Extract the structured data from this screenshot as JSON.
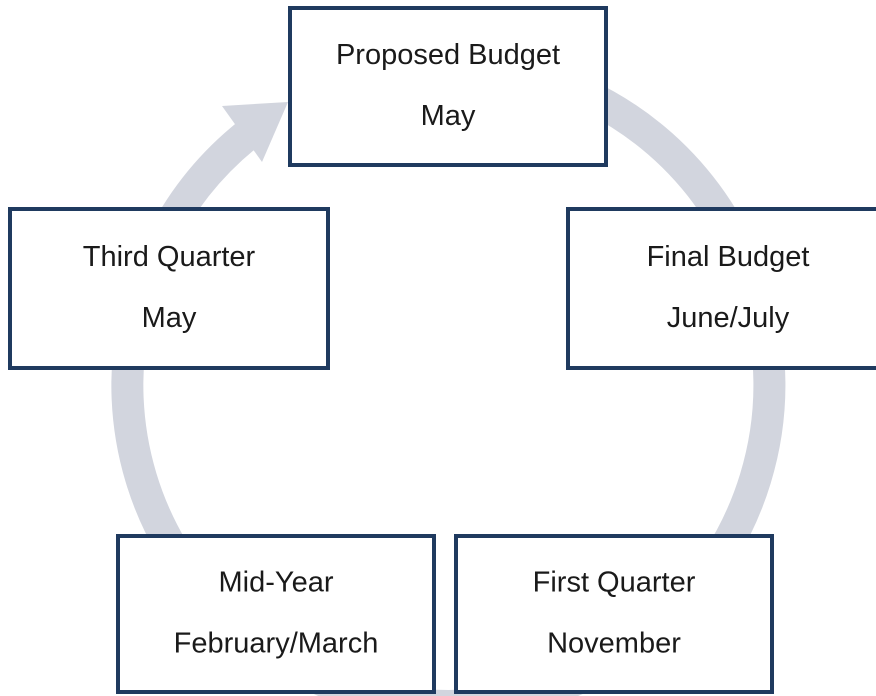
{
  "nodes": [
    {
      "label": "Proposed Budget",
      "date": "May"
    },
    {
      "label": "Final Budget",
      "date": "June/July"
    },
    {
      "label": "First Quarter",
      "date": "November"
    },
    {
      "label": "Mid-Year",
      "date": "February/March"
    },
    {
      "label": "Third Quarter",
      "date": "May"
    }
  ]
}
